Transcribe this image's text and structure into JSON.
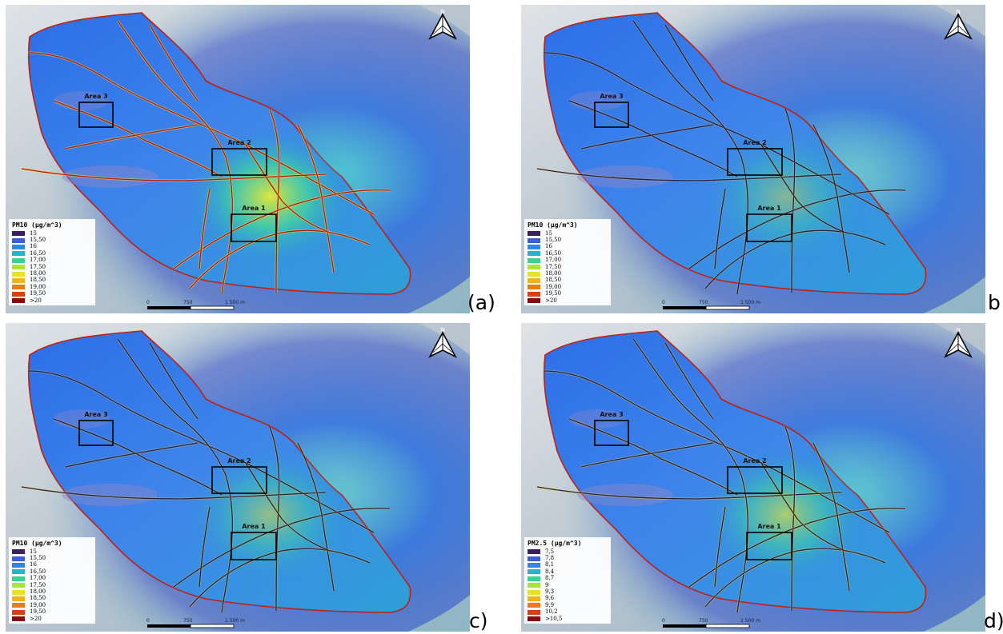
{
  "panels": [
    {
      "id": "a",
      "panel_label": "(a)",
      "legend_title": "PM10 (µg/m^3)",
      "legend_items": [
        "15",
        "15,50",
        "16",
        "16,50",
        "17,00",
        "17,50",
        "18,00",
        "18,50",
        "19,00",
        "19,50",
        ">20"
      ],
      "areas": [
        "Area 1",
        "Area 2",
        "Area 3"
      ],
      "north_label": "N",
      "scale_labels": [
        "0",
        "750",
        "1 500 m"
      ],
      "road_intensity": 1.0
    },
    {
      "id": "b",
      "panel_label": "b",
      "legend_title": "PM10 (µg/m^3)",
      "legend_items": [
        "15",
        "15,50",
        "16",
        "16,50",
        "17,00",
        "17,50",
        "18,00",
        "18,50",
        "19,00",
        "19,50",
        ">20"
      ],
      "areas": [
        "Area 1",
        "Area 2",
        "Area 3"
      ],
      "north_label": "N",
      "scale_labels": [
        "0",
        "750",
        "1 500 m"
      ],
      "road_intensity": 0.45
    },
    {
      "id": "c",
      "panel_label": "c)",
      "legend_title": "PM10 (µg/m^3)",
      "legend_items": [
        "15",
        "15,50",
        "16",
        "16,50",
        "17,00",
        "17,50",
        "18,00",
        "18,50",
        "19,00",
        "19,50",
        ">20"
      ],
      "areas": [
        "Area 1",
        "Area 2",
        "Area 3"
      ],
      "north_label": "N",
      "scale_labels": [
        "0",
        "750",
        "1 500 m"
      ],
      "road_intensity": 0.55
    },
    {
      "id": "d",
      "panel_label": "d)",
      "legend_title": "PM2.5 (µg/m^3)",
      "legend_items": [
        "7,5",
        "7,8",
        "8,1",
        "8,4",
        "8,7",
        "9",
        "9,3",
        "9,6",
        "9,9",
        "10,2",
        ">10,5"
      ],
      "areas": [
        "Area 1",
        "Area 2",
        "Area 3"
      ],
      "north_label": "N",
      "scale_labels": [
        "0",
        "750",
        "1 500 m"
      ],
      "road_intensity": 0.7
    }
  ],
  "legend_colors": [
    "#3b1f5c",
    "#3f5fd0",
    "#2f86e6",
    "#22b6cc",
    "#39d28f",
    "#a8e43a",
    "#e7e12a",
    "#f3b21c",
    "#ee7a16",
    "#d9400f",
    "#8b0a0a"
  ]
}
